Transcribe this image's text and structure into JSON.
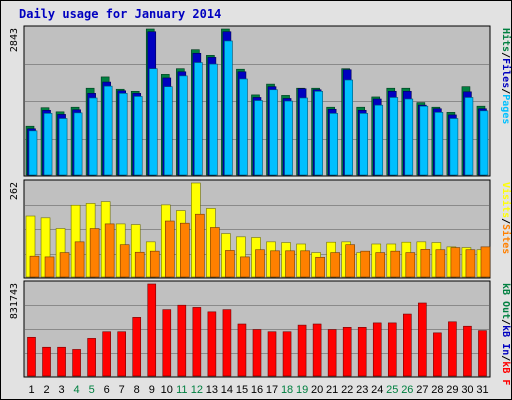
{
  "title": "Daily usage for January 2014",
  "colors": {
    "background": "#e2e2e2",
    "panel": "#c0c0c0",
    "hits": "#008040",
    "files": "#0000c0",
    "pages": "#00c0ff",
    "visits": "#ffff00",
    "sites": "#ff8000",
    "kbytes": "#ff0000",
    "weekend": "#008040",
    "weekday": "#000000",
    "slash": "#000000"
  },
  "chart_data": [
    {
      "type": "bar",
      "panel": "hits_files_pages",
      "ymax_label": "2843",
      "ylim": [
        0,
        2843
      ],
      "legend": [
        {
          "text": "Pages",
          "color": "#00c0ff"
        },
        {
          "text": "Files",
          "color": "#0000c0"
        },
        {
          "text": "Hits",
          "color": "#008040"
        }
      ],
      "categories": [
        "1",
        "2",
        "3",
        "4",
        "5",
        "6",
        "7",
        "8",
        "9",
        "10",
        "11",
        "12",
        "13",
        "14",
        "15",
        "16",
        "17",
        "18",
        "19",
        "20",
        "21",
        "22",
        "23",
        "24",
        "25",
        "26",
        "27",
        "28",
        "29",
        "30",
        "31"
      ],
      "series": [
        {
          "name": "Hits",
          "values": [
            950,
            1310,
            1230,
            1320,
            1690,
            1910,
            1670,
            1630,
            2843,
            1960,
            2070,
            2440,
            2330,
            2843,
            2060,
            1560,
            1770,
            1550,
            1690,
            1690,
            1320,
            2070,
            1320,
            1520,
            1690,
            1690,
            1410,
            1320,
            1220,
            1720,
            1340
          ]
        },
        {
          "name": "Files",
          "values": [
            900,
            1260,
            1180,
            1270,
            1590,
            1810,
            1640,
            1590,
            2790,
            1890,
            2010,
            2370,
            2290,
            2790,
            2010,
            1510,
            1720,
            1490,
            1680,
            1660,
            1280,
            2050,
            1260,
            1480,
            1630,
            1630,
            1360,
            1290,
            1170,
            1620,
            1290
          ]
        },
        {
          "name": "Pages",
          "values": [
            860,
            1200,
            1100,
            1210,
            1500,
            1730,
            1590,
            1530,
            2070,
            1720,
            1930,
            2190,
            2160,
            2610,
            1870,
            1450,
            1660,
            1440,
            1500,
            1630,
            1200,
            1850,
            1200,
            1360,
            1510,
            1480,
            1340,
            1220,
            1100,
            1510,
            1250
          ]
        }
      ]
    },
    {
      "type": "bar",
      "panel": "visits_sites",
      "ymax_label": "262",
      "ylim": [
        0,
        262
      ],
      "legend": [
        {
          "text": "Sites",
          "color": "#ff8000"
        },
        {
          "text": "Visits",
          "color": "#ffff00"
        }
      ],
      "categories": [
        "1",
        "2",
        "3",
        "4",
        "5",
        "6",
        "7",
        "8",
        "9",
        "10",
        "11",
        "12",
        "13",
        "14",
        "15",
        "16",
        "17",
        "18",
        "19",
        "20",
        "21",
        "22",
        "23",
        "24",
        "25",
        "26",
        "27",
        "28",
        "29",
        "30",
        "31"
      ],
      "series": [
        {
          "name": "Visits",
          "values": [
            170,
            165,
            135,
            200,
            205,
            210,
            148,
            146,
            98,
            201,
            185,
            262,
            191,
            121,
            112,
            110,
            98,
            96,
            92,
            68,
            97,
            98,
            68,
            92,
            92,
            97,
            98,
            96,
            84,
            82,
            76
          ]
        },
        {
          "name": "Sites",
          "values": [
            58,
            56,
            68,
            98,
            135,
            148,
            90,
            69,
            72,
            156,
            150,
            175,
            138,
            74,
            56,
            76,
            73,
            73,
            73,
            55,
            68,
            90,
            72,
            68,
            72,
            68,
            77,
            76,
            82,
            76,
            84
          ]
        }
      ]
    },
    {
      "type": "bar",
      "panel": "kbytes",
      "ymax_label": "831743",
      "ylim": [
        0,
        831743
      ],
      "legend": [
        {
          "text": "kB F",
          "color": "#ff0000"
        },
        {
          "text": "kB In",
          "color": "#0000c0"
        },
        {
          "text": "kB Out",
          "color": "#008040"
        }
      ],
      "categories": [
        "1",
        "2",
        "3",
        "4",
        "5",
        "6",
        "7",
        "8",
        "9",
        "10",
        "11",
        "12",
        "13",
        "14",
        "15",
        "16",
        "17",
        "18",
        "19",
        "20",
        "21",
        "22",
        "23",
        "24",
        "25",
        "26",
        "27",
        "28",
        "29",
        "30",
        "31"
      ],
      "series": [
        {
          "name": "kB F",
          "values": [
            350000,
            260000,
            260000,
            240000,
            340000,
            400000,
            400000,
            530000,
            831743,
            600000,
            640000,
            620000,
            580000,
            600000,
            470000,
            420000,
            400000,
            400000,
            460000,
            470000,
            420000,
            440000,
            440000,
            480000,
            480000,
            560000,
            660000,
            390000,
            490000,
            450000,
            410000
          ]
        }
      ]
    }
  ],
  "x_labels": [
    {
      "text": "1",
      "weekend": false
    },
    {
      "text": "2",
      "weekend": false
    },
    {
      "text": "3",
      "weekend": false
    },
    {
      "text": "4",
      "weekend": true
    },
    {
      "text": "5",
      "weekend": true
    },
    {
      "text": "6",
      "weekend": false
    },
    {
      "text": "7",
      "weekend": false
    },
    {
      "text": "8",
      "weekend": false
    },
    {
      "text": "9",
      "weekend": false
    },
    {
      "text": "10",
      "weekend": false
    },
    {
      "text": "11",
      "weekend": true
    },
    {
      "text": "12",
      "weekend": true
    },
    {
      "text": "13",
      "weekend": false
    },
    {
      "text": "14",
      "weekend": false
    },
    {
      "text": "15",
      "weekend": false
    },
    {
      "text": "16",
      "weekend": false
    },
    {
      "text": "17",
      "weekend": false
    },
    {
      "text": "18",
      "weekend": true
    },
    {
      "text": "19",
      "weekend": true
    },
    {
      "text": "20",
      "weekend": false
    },
    {
      "text": "21",
      "weekend": false
    },
    {
      "text": "22",
      "weekend": false
    },
    {
      "text": "23",
      "weekend": false
    },
    {
      "text": "24",
      "weekend": false
    },
    {
      "text": "25",
      "weekend": true
    },
    {
      "text": "26",
      "weekend": true
    },
    {
      "text": "27",
      "weekend": false
    },
    {
      "text": "28",
      "weekend": false
    },
    {
      "text": "29",
      "weekend": false
    },
    {
      "text": "30",
      "weekend": false
    },
    {
      "text": "31",
      "weekend": false
    }
  ]
}
